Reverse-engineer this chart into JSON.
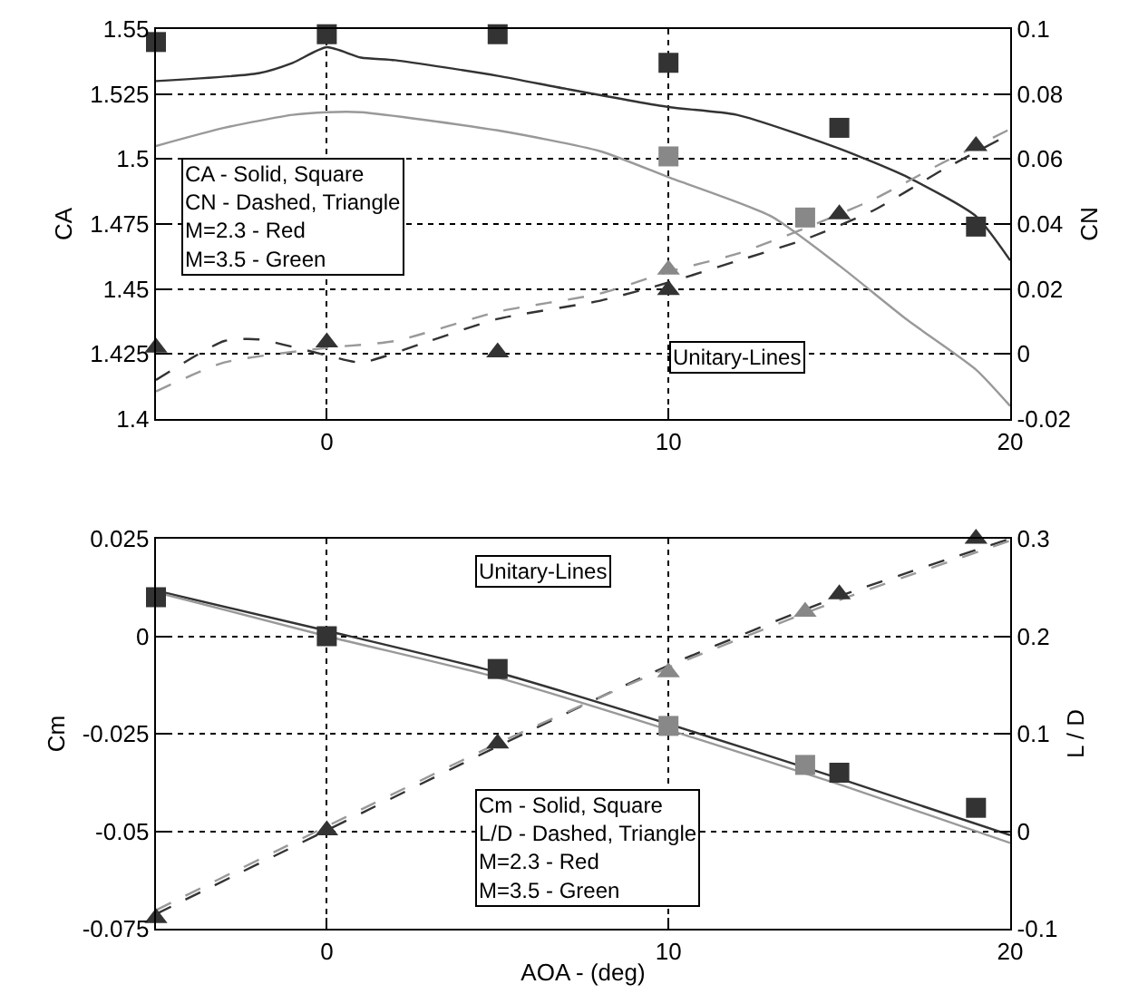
{
  "chart_data": [
    {
      "type": "line",
      "ylabel": "CA",
      "y2label": "CN",
      "xlim": [
        -5,
        20
      ],
      "xticks": [
        0,
        10,
        20
      ],
      "ylim": [
        1.4,
        1.55
      ],
      "yticks": [
        1.4,
        1.425,
        1.45,
        1.475,
        1.5,
        1.525,
        1.55
      ],
      "y2lim": [
        -0.02,
        0.1
      ],
      "y2ticks": [
        -0.02,
        0,
        0.02,
        0.04,
        0.06,
        0.08,
        0.1
      ],
      "grid": true,
      "annotations": [
        "CA - Solid, Square\nCN - Dashed, Triangle\nM=2.3 - Red\nM=3.5 - Green",
        "Unitary-Lines"
      ],
      "series": [
        {
          "type": "line",
          "color": "#333333",
          "line_style": "solid",
          "marker": "none",
          "x": [
            -5,
            -2,
            -1,
            0,
            1,
            2,
            5,
            7,
            10,
            12,
            15,
            17,
            19,
            20
          ],
          "values": [
            1.53,
            1.533,
            1.537,
            1.543,
            1.539,
            1.538,
            1.532,
            1.527,
            1.52,
            1.517,
            1.504,
            1.493,
            1.478,
            1.461
          ]
        },
        {
          "type": "line",
          "color": "#999999",
          "line_style": "solid",
          "marker": "none",
          "x": [
            -5,
            -3,
            -1,
            0,
            1,
            5,
            8,
            10,
            13,
            15,
            17,
            19,
            20
          ],
          "values": [
            1.505,
            1.512,
            1.517,
            1.518,
            1.518,
            1.511,
            1.503,
            1.493,
            1.478,
            1.459,
            1.438,
            1.419,
            1.405
          ]
        },
        {
          "type": "line",
          "axis": "y2",
          "color": "#333333",
          "line_style": "dashed",
          "marker": "none",
          "x": [
            -5,
            -3,
            -2,
            0,
            1,
            3,
            5,
            8,
            10,
            12,
            14,
            16,
            18,
            20
          ],
          "values": [
            -0.008,
            0.004,
            0.0045,
            -0.0004,
            -0.0026,
            0.004,
            0.0108,
            0.0164,
            0.022,
            0.0286,
            0.0353,
            0.0442,
            0.0565,
            0.0677
          ]
        },
        {
          "type": "line",
          "axis": "y2",
          "color": "#999999",
          "line_style": "dashed",
          "marker": "none",
          "x": [
            -5,
            -3,
            0,
            2,
            5,
            8,
            10,
            12,
            14,
            16,
            18,
            20
          ],
          "values": [
            -0.0115,
            -0.0026,
            0.0019,
            0.004,
            0.013,
            0.0186,
            0.0253,
            0.0308,
            0.0387,
            0.0476,
            0.0587,
            0.0692
          ]
        },
        {
          "type": "scatter",
          "color": "#333333",
          "marker": "square",
          "x": [
            -5,
            0,
            5,
            10,
            15,
            19
          ],
          "values": [
            1.545,
            1.548,
            1.548,
            1.537,
            1.512,
            1.474
          ]
        },
        {
          "type": "scatter",
          "color": "#888888",
          "marker": "square",
          "x": [
            10,
            14
          ],
          "values": [
            1.501,
            1.4775
          ]
        },
        {
          "type": "scatter",
          "axis": "y2",
          "color": "#333333",
          "marker": "triangle",
          "x": [
            -5,
            0,
            5,
            10,
            15,
            19
          ],
          "values": [
            0.002,
            0.0036,
            0.0005,
            0.0197,
            0.043,
            0.064
          ]
        },
        {
          "type": "scatter",
          "axis": "y2",
          "color": "#888888",
          "marker": "triangle",
          "x": [
            10
          ],
          "values": [
            0.026
          ]
        }
      ]
    },
    {
      "type": "line",
      "xlabel": "AOA - (deg)",
      "ylabel": "Cm",
      "y2label": "L / D",
      "xlim": [
        -5,
        20
      ],
      "xticks": [
        0,
        10,
        20
      ],
      "ylim": [
        -0.075,
        0.025
      ],
      "yticks": [
        -0.075,
        -0.05,
        -0.025,
        0,
        0.025
      ],
      "y2lim": [
        -0.1,
        0.3
      ],
      "y2ticks": [
        -0.1,
        0,
        0.1,
        0.2,
        0.3
      ],
      "grid": true,
      "annotations": [
        "Unitary-Lines",
        "Cm - Solid, Square\nL/D - Dashed, Triangle\nM=2.3 - Red\nM=3.5 - Green"
      ],
      "series": [
        {
          "type": "line",
          "color": "#333333",
          "line_style": "solid",
          "marker": "none",
          "x": [
            -5,
            0,
            5,
            10,
            15,
            20
          ],
          "values": [
            0.0117,
            0.0014,
            -0.0093,
            -0.0225,
            -0.0365,
            -0.051
          ]
        },
        {
          "type": "line",
          "color": "#999999",
          "line_style": "solid",
          "marker": "none",
          "x": [
            -5,
            0,
            5,
            10,
            15,
            20
          ],
          "values": [
            0.0113,
            0.0,
            -0.0106,
            -0.024,
            -0.038,
            -0.053
          ]
        },
        {
          "type": "line",
          "axis": "y2",
          "color": "#333333",
          "line_style": "dashed",
          "marker": "none",
          "x": [
            -5,
            0,
            5,
            10,
            15,
            20
          ],
          "values": [
            -0.085,
            0.001,
            0.087,
            0.17,
            0.241,
            0.3
          ]
        },
        {
          "type": "line",
          "axis": "y2",
          "color": "#999999",
          "line_style": "dashed",
          "marker": "none",
          "x": [
            -5,
            0,
            5,
            10,
            15,
            20
          ],
          "values": [
            -0.081,
            0.005,
            0.09,
            0.168,
            0.237,
            0.298
          ]
        },
        {
          "type": "scatter",
          "color": "#333333",
          "marker": "square",
          "x": [
            -5,
            0,
            5,
            10,
            15,
            19
          ],
          "values": [
            0.01,
            0.0,
            -0.0084,
            null,
            -0.035,
            -0.044
          ]
        },
        {
          "type": "scatter",
          "color": "#888888",
          "marker": "square",
          "x": [
            10,
            14
          ],
          "values": [
            -0.023,
            -0.033
          ]
        },
        {
          "type": "scatter",
          "axis": "y2",
          "color": "#333333",
          "marker": "triangle",
          "x": [
            -5,
            0,
            5,
            15,
            19
          ],
          "values": [
            -0.089,
            0.001,
            0.09,
            0.243,
            0.3
          ]
        },
        {
          "type": "scatter",
          "axis": "y2",
          "color": "#888888",
          "marker": "triangle",
          "x": [
            10,
            14
          ],
          "values": [
            0.163,
            0.225
          ]
        }
      ]
    }
  ]
}
